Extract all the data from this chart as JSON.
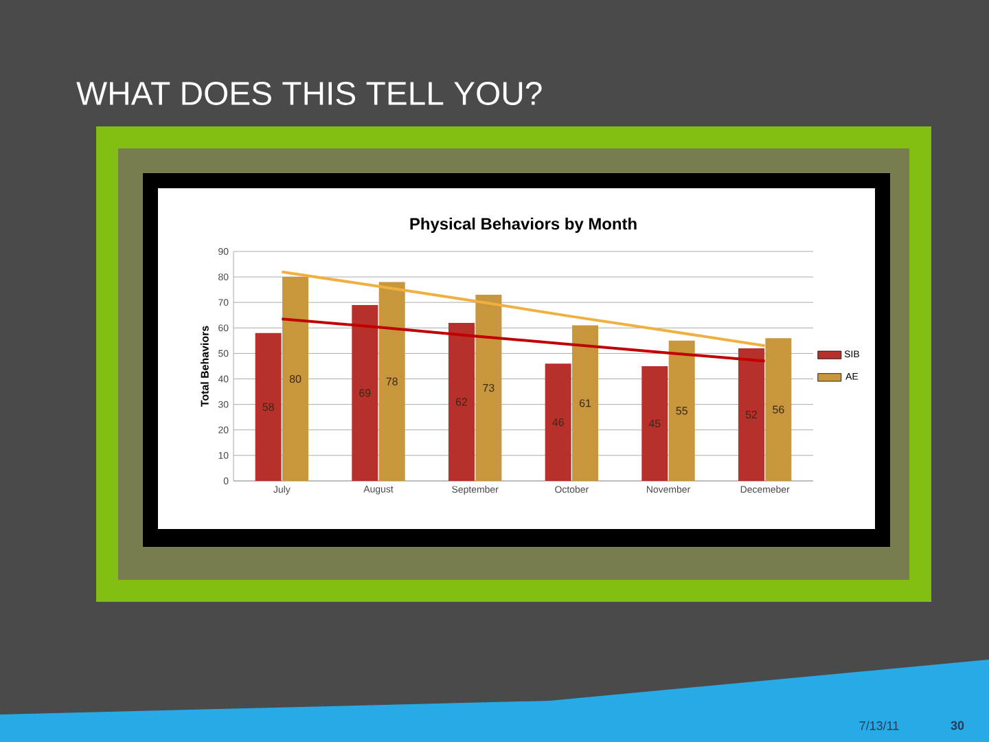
{
  "chart_data": {
    "type": "bar",
    "title": "Physical Behaviors by Month",
    "ylabel": "Total Behaviors",
    "categories": [
      "July",
      "August",
      "September",
      "October",
      "November",
      "Decemeber"
    ],
    "series": [
      {
        "name": "SIB",
        "color": "#b8302c",
        "values": [
          58,
          69,
          62,
          46,
          45,
          52
        ],
        "value_labels": [
          "58",
          "69",
          "62",
          "46",
          "45",
          "52"
        ]
      },
      {
        "name": "AE",
        "color": "#c8963c",
        "values": [
          80,
          78,
          73,
          61,
          55,
          56
        ],
        "value_labels": [
          "80",
          "78",
          "73",
          "61",
          "55",
          "56"
        ]
      },
      {
        "type": "line",
        "color": "#c00000",
        "values": [
          63.5,
          60.3,
          56.8,
          53.5,
          50.2,
          47
        ]
      },
      {
        "type": "line",
        "color": "#f0b040",
        "values": [
          82,
          76.3,
          70.5,
          64.5,
          58.8,
          53
        ]
      }
    ],
    "ylim": [
      0,
      90
    ],
    "yticks": [
      0,
      10,
      20,
      30,
      40,
      50,
      60,
      70,
      80,
      90
    ],
    "grid": "y",
    "legend": "right",
    "annotations": [
      "WHAT DOES THIS TELL YOU?",
      "7/13/11",
      "30"
    ]
  }
}
